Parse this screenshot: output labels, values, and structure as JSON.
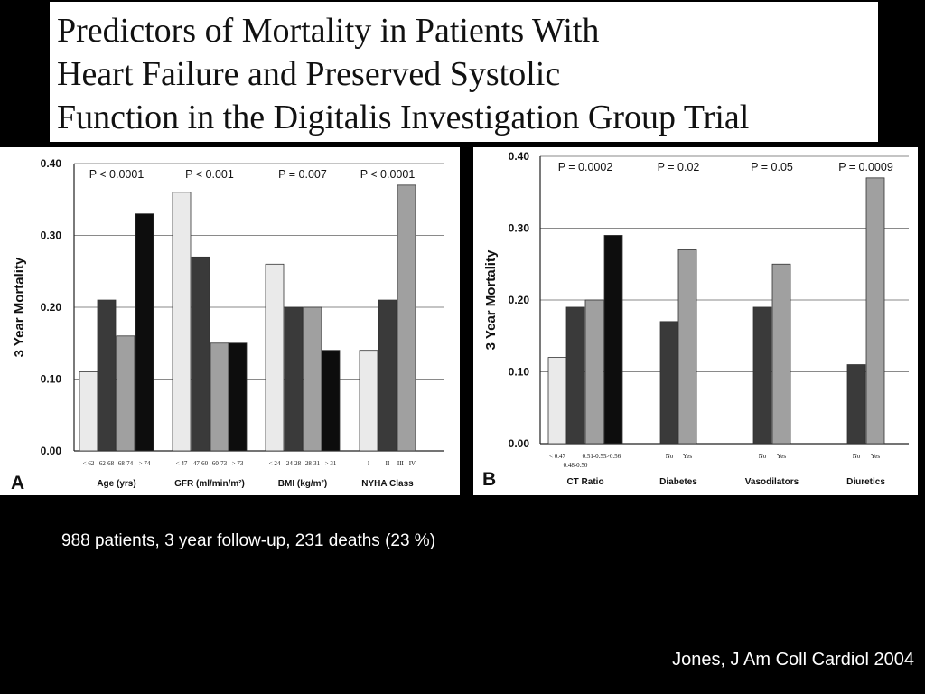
{
  "slide": {
    "title_lines": [
      "Predictors of Mortality in Patients With",
      "Heart Failure and Preserved Systolic",
      "Function in the Digitalis Investigation Group Trial"
    ],
    "footnote": "988 patients, 3 year follow-up, 231 deaths (23 %)",
    "citation": "Jones, J Am Coll Cardiol 2004"
  },
  "colors": {
    "very_light": "#eaeaea",
    "dark": "#3a3a3a",
    "medium": "#a0a0a0",
    "black": "#0d0d0d",
    "grid": "#8a8a8a"
  },
  "chart_data": [
    {
      "type": "bar",
      "panel_label": "A",
      "ylabel": "3 Year Mortality",
      "ylim": [
        0,
        0.4
      ],
      "yticks": [
        "0.00",
        "0.10",
        "0.20",
        "0.30",
        "0.40"
      ],
      "grid": true,
      "groups": [
        {
          "name": "Age (yrs)",
          "p_value": "P < 0.0001",
          "categories": [
            "< 62",
            "62-68",
            "68-74",
            "> 74"
          ],
          "values": [
            0.11,
            0.21,
            0.16,
            0.33
          ],
          "shades": [
            "very_light",
            "dark",
            "medium",
            "black"
          ]
        },
        {
          "name": "GFR (ml/min/m²)",
          "p_value": "P < 0.001",
          "categories": [
            "< 47",
            "47-60",
            "60-73",
            "> 73"
          ],
          "values": [
            0.36,
            0.27,
            0.15,
            0.15
          ],
          "shades": [
            "very_light",
            "dark",
            "medium",
            "black"
          ]
        },
        {
          "name": "BMI (kg/m²)",
          "p_value": "P = 0.007",
          "categories": [
            "< 24",
            "24-28",
            "28-31",
            "> 31"
          ],
          "values": [
            0.26,
            0.2,
            0.2,
            0.14
          ],
          "shades": [
            "very_light",
            "dark",
            "medium",
            "black"
          ]
        },
        {
          "name": "NYHA Class",
          "p_value": "P < 0.0001",
          "categories": [
            "I",
            "II",
            "III - IV"
          ],
          "values": [
            0.14,
            0.21,
            0.37
          ],
          "shades": [
            "very_light",
            "dark",
            "medium"
          ]
        }
      ]
    },
    {
      "type": "bar",
      "panel_label": "B",
      "ylabel": "3 Year Mortality",
      "ylim": [
        0,
        0.4
      ],
      "yticks": [
        "0.00",
        "0.10",
        "0.20",
        "0.30",
        "0.40"
      ],
      "grid": true,
      "groups": [
        {
          "name": "CT Ratio",
          "p_value": "P = 0.0002",
          "categories": [
            "< 0.47",
            "0.48-0.50",
            "0.51-0.55",
            ">0.56"
          ],
          "values": [
            0.12,
            0.19,
            0.2,
            0.29
          ],
          "shades": [
            "very_light",
            "dark",
            "medium",
            "black"
          ]
        },
        {
          "name": "Diabetes",
          "p_value": "P = 0.02",
          "categories": [
            "No",
            "Yes"
          ],
          "values": [
            0.17,
            0.27
          ],
          "shades": [
            "dark",
            "medium"
          ]
        },
        {
          "name": "Vasodilators",
          "p_value": "P = 0.05",
          "categories": [
            "No",
            "Yes"
          ],
          "values": [
            0.19,
            0.25
          ],
          "shades": [
            "dark",
            "medium"
          ]
        },
        {
          "name": "Diuretics",
          "p_value": "P = 0.0009",
          "categories": [
            "No",
            "Yes"
          ],
          "values": [
            0.11,
            0.37
          ],
          "shades": [
            "dark",
            "medium"
          ]
        }
      ]
    }
  ]
}
